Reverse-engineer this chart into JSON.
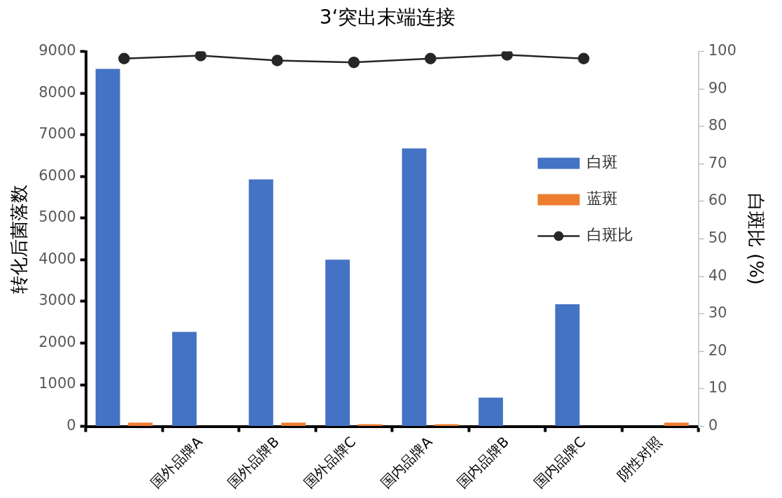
{
  "chart_data": {
    "type": "bar",
    "title": "3‘突出末端连接",
    "categories": [
      null,
      "国外品牌A",
      "国外品牌B",
      "国外品牌C",
      "国内品牌A",
      "国内品牌B",
      "国内品牌C",
      "阴性对照"
    ],
    "series": [
      {
        "name": "白斑",
        "color": "#4472c4",
        "values": [
          8580,
          2270,
          5930,
          4000,
          6670,
          690,
          2930,
          0
        ]
      },
      {
        "name": "蓝斑",
        "color": "#ed7d31",
        "values": [
          90,
          0,
          90,
          50,
          50,
          0,
          0,
          90
        ]
      },
      {
        "name": "白斑比",
        "type": "line",
        "axis": "y2",
        "color": "#262626",
        "values": [
          98.1,
          98.9,
          97.6,
          97.1,
          98.1,
          99.1,
          98.1,
          null
        ]
      }
    ],
    "ylabel": "转化后菌落数",
    "y2label": "白斑比 (%)",
    "ylim": [
      0,
      9000
    ],
    "yticks": [
      0,
      1000,
      2000,
      3000,
      4000,
      5000,
      6000,
      7000,
      8000,
      9000
    ],
    "y2lim": [
      0,
      100
    ],
    "y2ticks": [
      0,
      10,
      20,
      30,
      40,
      50,
      60,
      70,
      80,
      90,
      100
    ],
    "grid": false,
    "legend": "right",
    "marker": "circle",
    "line_style": "solid"
  }
}
